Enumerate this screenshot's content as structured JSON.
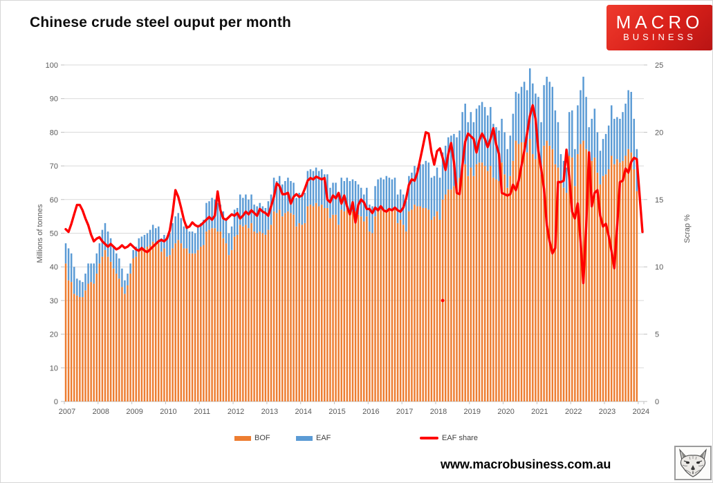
{
  "page": {
    "title": "Chinese crude steel ouput per month",
    "footer_url": "www.macrobusiness.com.au"
  },
  "logo": {
    "line1": "MACRO",
    "line2": "BUSINESS",
    "bg_color": "#d8201a"
  },
  "chart_data": {
    "type": "bar",
    "subtype": "stacked-bars-with-line",
    "title": "Chinese crude steel ouput per month",
    "left_axis": {
      "label": "Millions of tonnes",
      "min": 0,
      "max": 100,
      "tick_step": 10,
      "ticks": [
        0,
        10,
        20,
        30,
        40,
        50,
        60,
        70,
        80,
        90,
        100
      ]
    },
    "right_axis": {
      "label": "Scrap %",
      "min": 0,
      "max": 25,
      "tick_step": 5,
      "ticks": [
        0,
        5,
        10,
        15,
        20,
        25
      ]
    },
    "x_ticks": [
      "2007",
      "2008",
      "2009",
      "2010",
      "2011",
      "2012",
      "2013",
      "2014",
      "2015",
      "2016",
      "2017",
      "2018",
      "2019",
      "2020",
      "2021",
      "2022",
      "2023",
      "2024"
    ],
    "grid": "horizontal",
    "legend_position": "bottom",
    "legend": [
      {
        "label": "BOF",
        "color": "#ED7D31",
        "kind": "bar"
      },
      {
        "label": "EAF",
        "color": "#5B9BD5",
        "kind": "bar"
      },
      {
        "label": "EAF share",
        "color": "#FF0000",
        "kind": "line"
      }
    ],
    "series": [
      {
        "name": "BOF",
        "axis": "left",
        "unit": "Mt",
        "values_by_year": {
          "2007": [
            41,
            36,
            35.5,
            32,
            31.5,
            31,
            31,
            33,
            35,
            35.5,
            35,
            38
          ],
          "2008": [
            41,
            43,
            45,
            43,
            41.5,
            39.5,
            38,
            36.5,
            34,
            32,
            34.5,
            38
          ],
          "2009": [
            42.5,
            43,
            45,
            45.5,
            45.5,
            46,
            46.5,
            47.5,
            47,
            47,
            44.5,
            45.5
          ],
          "2010": [
            43,
            43.5,
            45.5,
            47,
            48,
            47,
            45.5,
            45.5,
            44,
            44,
            44,
            45
          ],
          "2011": [
            46,
            46.5,
            50.5,
            51,
            51.5,
            51.5,
            50.5,
            50.5,
            48.5,
            47,
            43.5,
            45
          ],
          "2012": [
            49,
            49.5,
            52.5,
            52,
            52.5,
            51.5,
            53,
            50.5,
            50,
            50.5,
            50,
            49.5
          ],
          "2013": [
            51,
            52.5,
            56.5,
            56,
            57,
            55,
            56,
            56.5,
            56,
            55.5,
            52,
            53
          ],
          "2014": [
            52.5,
            53,
            58,
            58.5,
            58,
            59,
            58,
            58.5,
            57.5,
            57.5,
            54.5,
            55.5
          ],
          "2015": [
            55.5,
            52.5,
            57,
            56.5,
            57,
            56.5,
            56.5,
            56.5,
            55.5,
            55,
            53.5,
            55
          ],
          "2016": [
            50.5,
            50,
            55,
            56.5,
            57,
            56.5,
            57,
            57,
            56.5,
            57,
            53,
            54
          ],
          "2017": [
            52.5,
            50.5,
            56.5,
            57,
            58.5,
            58,
            58,
            57.5,
            57.5,
            57,
            54,
            55
          ],
          "2018": [
            56.5,
            54,
            60,
            61.5,
            63,
            63,
            64,
            65,
            66.5,
            69.5,
            70.5,
            67
          ],
          "2019": [
            69.5,
            67,
            70.5,
            71,
            71,
            70,
            68.5,
            70,
            66.5,
            66,
            65.5,
            71
          ],
          "2020": [
            67.5,
            63.5,
            67,
            71.5,
            77.5,
            76.5,
            77,
            77,
            74,
            78,
            73.5,
            72
          ],
          "2021": [
            73.5,
            67.5,
            76,
            77.5,
            76,
            75,
            70.5,
            69.5,
            65,
            63.5,
            62,
            73
          ],
          "2022": [
            72.5,
            64,
            73.5,
            76.5,
            77.5,
            75,
            70.5,
            71.5,
            72.5,
            68,
            64.5,
            67
          ],
          "2023": [
            67.5,
            69,
            73,
            70.5,
            72,
            71,
            71.5,
            73,
            75,
            74,
            69,
            62.5
          ]
        }
      },
      {
        "name": "EAF",
        "axis": "left",
        "unit": "Mt",
        "values_by_year": {
          "2007": [
            6,
            9.5,
            8.5,
            8,
            5,
            5,
            4.5,
            5,
            6,
            5.5,
            6,
            6
          ],
          "2008": [
            6,
            8,
            8,
            7.5,
            7,
            6.5,
            6,
            6,
            5.5,
            4,
            3.5,
            3
          ],
          "2009": [
            2.5,
            3,
            3.5,
            3.5,
            4,
            4,
            4.5,
            5,
            4.5,
            5,
            4,
            4
          ],
          "2010": [
            6,
            6.5,
            7.5,
            8,
            8,
            7.5,
            6.5,
            7,
            6.5,
            6.5,
            6,
            7
          ],
          "2011": [
            7,
            7.5,
            8.5,
            8.5,
            9,
            8.5,
            8.5,
            8,
            8,
            7.5,
            6.5,
            7
          ],
          "2012": [
            8,
            8,
            9,
            8.5,
            9,
            8.5,
            8.5,
            8,
            8,
            8.5,
            8,
            8
          ],
          "2013": [
            8.5,
            9,
            10,
            9.5,
            10,
            9.5,
            9.5,
            10,
            9.5,
            9.5,
            8.5,
            9
          ],
          "2014": [
            9,
            9,
            10.5,
            10.5,
            10.5,
            10.5,
            10.5,
            10.5,
            10,
            10,
            9,
            9.5
          ],
          "2015": [
            9.5,
            8.5,
            9.5,
            9,
            9.5,
            9,
            9.5,
            9,
            9,
            8.5,
            8,
            8.5
          ],
          "2016": [
            8,
            8,
            9,
            9.5,
            9.5,
            9.5,
            10,
            9.5,
            9.5,
            9.5,
            8.5,
            9
          ],
          "2017": [
            9,
            9,
            10.5,
            11,
            11.5,
            11.5,
            12.5,
            13,
            14,
            14,
            12.5,
            12
          ],
          "2018": [
            13,
            12.5,
            14,
            14.5,
            15.5,
            16,
            15.5,
            13.5,
            14,
            16.5,
            18,
            16
          ],
          "2019": [
            16.5,
            16,
            16.5,
            17,
            18,
            17.5,
            16.5,
            17.5,
            16,
            15.5,
            15,
            13
          ],
          "2020": [
            12.5,
            11.5,
            12,
            14,
            14.5,
            15,
            16.5,
            18,
            18.5,
            21,
            21,
            19.5
          ],
          "2021": [
            17,
            15.5,
            18,
            19,
            19,
            18.5,
            16,
            13.5,
            8.5,
            8,
            7.5,
            13
          ],
          "2022": [
            14,
            11,
            14.5,
            16,
            19,
            15.5,
            11,
            12.5,
            14.5,
            12,
            10,
            11
          ],
          "2023": [
            12,
            13,
            15,
            13.5,
            12.5,
            13,
            14.5,
            15.5,
            17.5,
            18,
            15,
            12.5
          ]
        }
      },
      {
        "name": "EAF share",
        "axis": "right",
        "unit": "%",
        "values_by_year": {
          "2007": [
            12.8,
            12.6,
            13.2,
            13.9,
            14.6,
            14.6,
            14.2,
            13.6,
            13.1,
            12.4,
            11.9,
            12.1
          ],
          "2008": [
            12.2,
            11.9,
            11.7,
            11.5,
            11.7,
            11.5,
            11.3,
            11.4,
            11.6,
            11.4,
            11.5,
            11.7
          ],
          "2009": [
            11.5,
            11.3,
            11.2,
            11.4,
            11.2,
            11.1,
            11.3,
            11.5,
            11.7,
            11.9,
            12.0,
            11.9
          ],
          "2010": [
            12.1,
            12.7,
            14.0,
            15.7,
            15.2,
            14.4,
            13.5,
            12.9,
            13.0,
            13.3,
            13.1,
            13.0
          ],
          "2011": [
            13.1,
            13.3,
            13.5,
            13.7,
            13.5,
            13.8,
            15.6,
            14.2,
            13.6,
            13.5,
            13.7,
            13.9
          ],
          "2012": [
            13.8,
            14.0,
            13.6,
            13.8,
            14.1,
            13.9,
            14.2,
            14.0,
            13.8,
            14.3,
            14.1,
            14.0
          ],
          "2013": [
            13.8,
            14.5,
            15.2,
            16.2,
            16.0,
            15.4,
            15.4,
            15.5,
            14.7,
            15.2,
            15.4,
            15.2
          ],
          "2014": [
            15.3,
            15.8,
            16.4,
            16.6,
            16.5,
            16.7,
            16.6,
            16.5,
            16.6,
            15.0,
            14.8,
            15.3
          ],
          "2015": [
            15.1,
            15.5,
            14.7,
            15.3,
            14.5,
            13.9,
            14.8,
            13.3,
            14.6,
            15.0,
            14.8,
            14.3
          ],
          "2016": [
            14.3,
            14.0,
            14.4,
            14.2,
            14.5,
            14.2,
            14.1,
            14.3,
            14.2,
            14.4,
            14.2,
            14.1
          ],
          "2017": [
            14.4,
            15.1,
            16.1,
            16.5,
            16.4,
            17.0,
            18.0,
            19.0,
            20.0,
            19.9,
            18.5,
            17.6
          ],
          "2018": [
            18.6,
            18.8,
            18.1,
            17.2,
            18.4,
            19.2,
            17.8,
            15.5,
            15.4,
            17.5,
            19.3,
            19.9
          ],
          "2019": [
            19.7,
            19.5,
            18.5,
            19.4,
            19.9,
            19.5,
            18.9,
            19.5,
            20.3,
            19.1,
            18.4,
            15.5
          ],
          "2020": [
            15.4,
            15.3,
            15.4,
            16.1,
            15.7,
            16.4,
            17.5,
            18.6,
            19.9,
            21.2,
            22.0,
            21.0
          ],
          "2021": [
            18.6,
            17.3,
            15.8,
            13.1,
            11.9,
            11.0,
            11.4,
            16.3,
            16.3,
            16.4,
            18.7,
            16.7
          ],
          "2022": [
            14.1,
            13.6,
            14.7,
            11.9,
            8.8,
            13.0,
            18.5,
            14.5,
            15.5,
            15.7,
            13.8,
            13.0
          ],
          "2023": [
            13.2,
            12.3,
            11.2,
            9.9,
            13.0,
            16.3,
            16.4,
            17.3,
            17.0,
            17.8,
            18.1,
            18.0
          ],
          "2024": [
            15.3,
            12.6
          ]
        }
      }
    ],
    "stray_point": {
      "month": "2018-03",
      "value_pct": 7.5
    },
    "colors": {
      "bof": "#ED7D31",
      "eaf": "#5B9BD5",
      "share": "#FF0000",
      "gridline": "#d9d9d9",
      "axis_line": "#bfbfbf",
      "tick_text": "#595959"
    }
  }
}
